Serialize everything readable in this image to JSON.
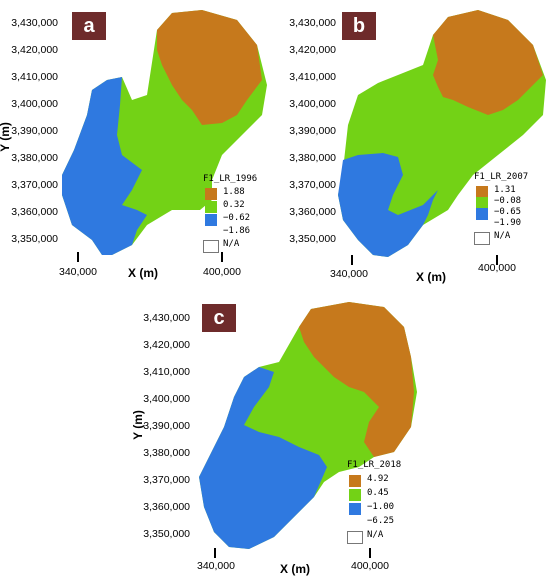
{
  "colors": {
    "orange": "#c6791c",
    "green": "#73d216",
    "blue": "#2f79e0",
    "badge": "#6e2b2b"
  },
  "x_axis_title": "X (m)",
  "y_axis_title": "Y (m)",
  "y_ticks": [
    "3,430,000",
    "3,420,000",
    "3,410,000",
    "3,400,000",
    "3,390,000",
    "3,380,000",
    "3,370,000",
    "3,360,000",
    "3,350,000"
  ],
  "x_ticks": [
    "340,000",
    "400,000"
  ],
  "panels": [
    {
      "label": "a",
      "legend_title": "F1_LR_1996",
      "classes": [
        "1.88",
        "0.32",
        "−0.62",
        "−1.86"
      ],
      "na": "N/A"
    },
    {
      "label": "b",
      "legend_title": "F1_LR_2007",
      "classes": [
        "1.31",
        "−0.08",
        "−0.65",
        "−1.90"
      ],
      "na": "N/A"
    },
    {
      "label": "c",
      "legend_title": "F1_LR_2018",
      "classes": [
        "4.92",
        "0.45",
        "−1.00",
        "−6.25"
      ],
      "na": "N/A"
    }
  ]
}
